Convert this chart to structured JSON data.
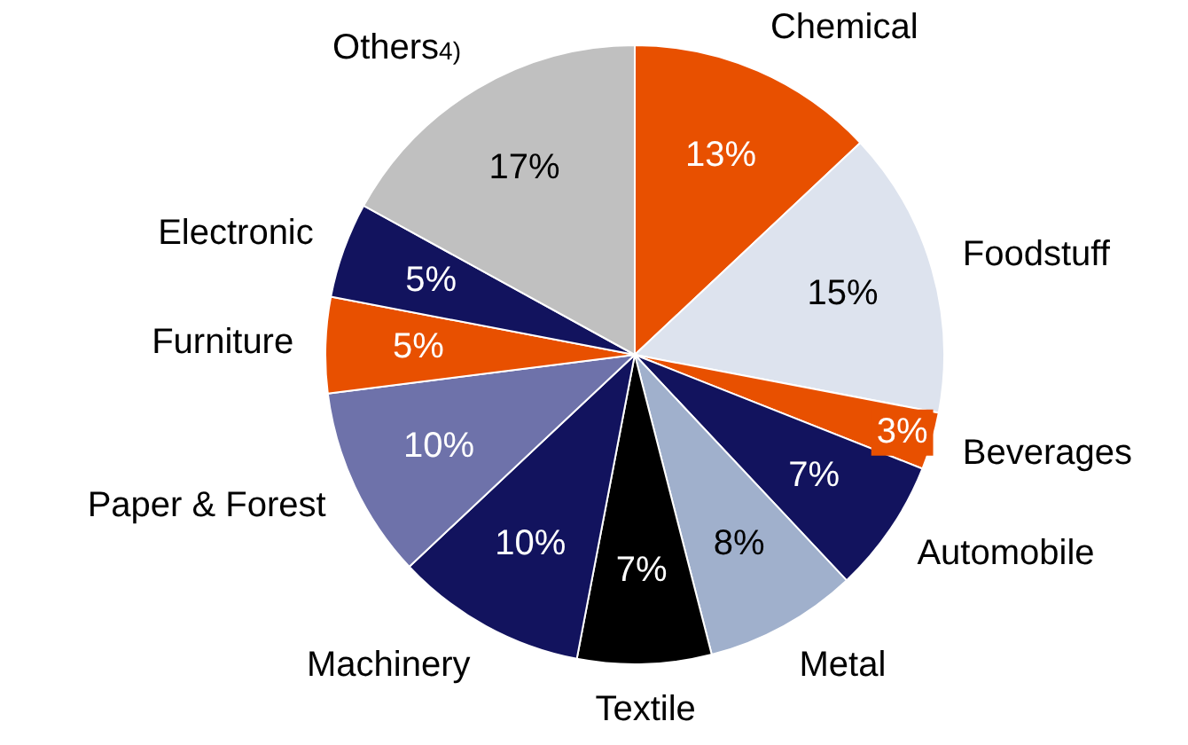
{
  "chart_data": {
    "type": "pie",
    "categories": [
      "Chemical",
      "Foodstuff",
      "Beverages",
      "Automobile",
      "Metal",
      "Textile",
      "Machinery",
      "Paper & Forest",
      "Furniture",
      "Electronic",
      "Others$^{4)}$"
    ],
    "values": [
      13,
      15,
      3,
      7,
      8,
      7,
      10,
      10,
      5,
      5,
      17
    ],
    "value_labels": [
      "13%",
      "15%",
      "3%",
      "7%",
      "8%",
      "7%",
      "10%",
      "10%",
      "5%",
      "5%",
      "17%"
    ],
    "colors": [
      "#e85000",
      "#dde3ee",
      "#e85000",
      "#12135e",
      "#a0b0cc",
      "#000000",
      "#12135e",
      "#6e72aa",
      "#e85000",
      "#12135e",
      "#c0c0c0"
    ]
  }
}
